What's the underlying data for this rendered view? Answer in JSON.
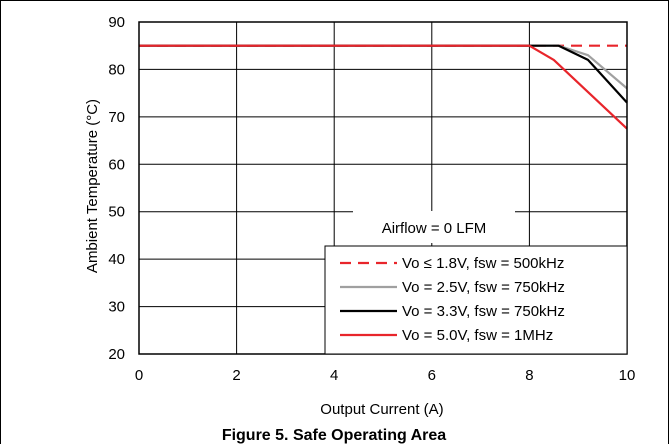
{
  "chart_data": {
    "type": "line",
    "caption": "Figure 5. Safe Operating Area",
    "xlabel": "Output Current (A)",
    "ylabel": "Ambient Temperature (°C)",
    "xlim": [
      0,
      10
    ],
    "ylim": [
      20,
      90
    ],
    "xticks": [
      0,
      2,
      4,
      6,
      8,
      10
    ],
    "yticks": [
      20,
      30,
      40,
      50,
      60,
      70,
      80,
      90
    ],
    "grid": true,
    "annotation": "Airflow = 0 LFM",
    "legend_position": "bottom-right",
    "series": [
      {
        "name": "Vo ≤ 1.8V, fsw = 500kHz",
        "color": "#e8252b",
        "dash": true,
        "points": [
          [
            0,
            85
          ],
          [
            8.3,
            85
          ],
          [
            10,
            85
          ]
        ]
      },
      {
        "name": "Vo = 2.5V, fsw = 750kHz",
        "color": "#a0a0a0",
        "dash": false,
        "points": [
          [
            0,
            85
          ],
          [
            8.6,
            85
          ],
          [
            9.2,
            83
          ],
          [
            10,
            76
          ]
        ]
      },
      {
        "name": "Vo = 3.3V, fsw = 750kHz",
        "color": "#000000",
        "dash": false,
        "points": [
          [
            0,
            85
          ],
          [
            8.6,
            85
          ],
          [
            9.2,
            82
          ],
          [
            10,
            73
          ]
        ]
      },
      {
        "name": "Vo = 5.0V, fsw = 1MHz",
        "color": "#e8252b",
        "dash": false,
        "points": [
          [
            0,
            85
          ],
          [
            8.0,
            85
          ],
          [
            8.5,
            82
          ],
          [
            10,
            67.5
          ]
        ]
      }
    ]
  }
}
